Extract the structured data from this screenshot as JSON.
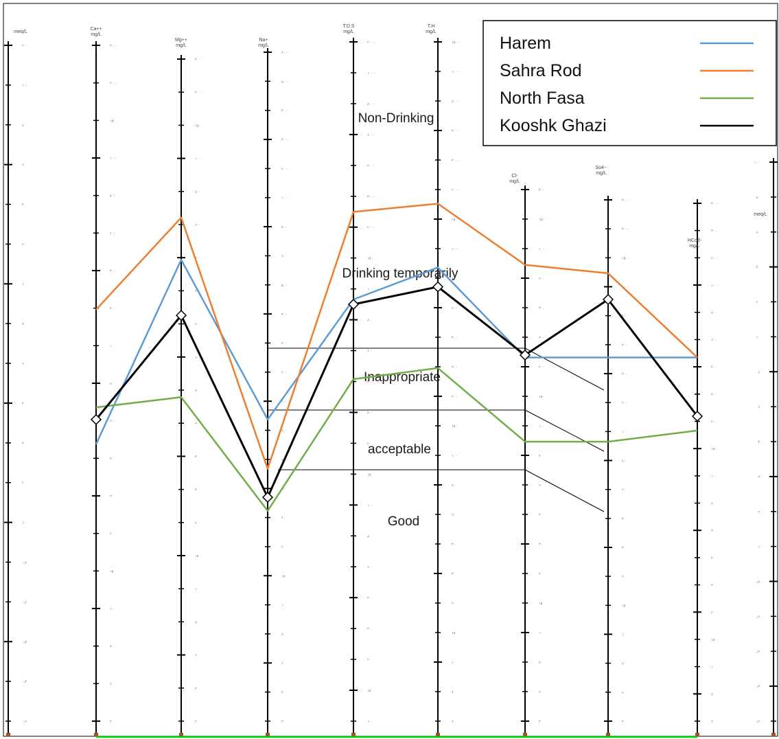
{
  "chart_data": {
    "type": "line",
    "title": "",
    "xlabel": "",
    "ylabel": "",
    "grid": false,
    "legend_position": "top-right",
    "axes": [
      {
        "id": "meq",
        "label": "meq/L"
      },
      {
        "id": "ca",
        "label": "Ca++ mg/L"
      },
      {
        "id": "mg",
        "label": "Mg++ mg/L"
      },
      {
        "id": "na",
        "label": "Na+ mg/L"
      },
      {
        "id": "tds",
        "label": "T.D.S mg/L"
      },
      {
        "id": "th",
        "label": "T.H mg/L"
      },
      {
        "id": "cl",
        "label": "Cl- mg/L"
      },
      {
        "id": "so4",
        "label": "So4-- mg/L"
      },
      {
        "id": "hco3",
        "label": "HCo3- mg/L"
      },
      {
        "id": "meq_right",
        "label": "meq/L"
      }
    ],
    "x": [
      "Ca++",
      "Mg++",
      "Na+",
      "T.D.S",
      "T.H",
      "Cl-",
      "So4--",
      "HCo3-"
    ],
    "y_scale": "log",
    "y_unit": "meq/L",
    "ylim": [
      0.01,
      1000
    ],
    "zones": [
      "Non-Drinking",
      "Drinking temporarily",
      "Inappropriate",
      "acceptable",
      "Good"
    ],
    "series": [
      {
        "name": "Harem",
        "color": "#5b9bd5",
        "values": [
          1.2,
          25,
          1.8,
          13,
          22,
          5,
          5,
          5
        ]
      },
      {
        "name": "Sahra Rod",
        "color": "#ed7d31",
        "values": [
          11,
          50,
          0.8,
          55,
          63,
          23,
          20,
          5
        ]
      },
      {
        "name": "North Fasa",
        "color": "#70ad47",
        "values": [
          2.2,
          2.6,
          0.4,
          3.5,
          4.2,
          1.25,
          1.25,
          1.5
        ]
      },
      {
        "name": "Kooshk Ghazi",
        "color": "#000000",
        "values": [
          1.8,
          10,
          0.5,
          12,
          16,
          5.2,
          13,
          1.9
        ]
      }
    ],
    "tick_labels": {
      "meq": [
        "۲۰۰",
        "۱۰۰",
        "۸۰",
        "۶۰",
        "۴۰",
        "۲۰",
        "۱۰",
        "۸",
        "۶",
        "۴",
        "۳",
        "۲",
        "۱",
        "۰٫۸",
        "۰٫۶",
        "۰٫۵",
        "۰٫۳",
        "۰٫۲"
      ],
      "meq_right": [
        "۱۰۰",
        "۸۰",
        "۶۰",
        "۴۰",
        "۲۰",
        "۱۰",
        "۸",
        "۶",
        "۴",
        "۳",
        "۲",
        "۱",
        "۰٫۸",
        "۰٫۶",
        "۰٫۴",
        "۰٫۳",
        "۰٫۲"
      ],
      "ca": [
        "۳۰۰۰",
        "۲۰۰۰",
        "۱۵۰۰",
        "۱۰۰۰",
        "۸۰۰",
        "۶۰۰",
        "۴۰۰",
        "۲۰۰",
        "۱۰۰",
        "۸۰",
        "۶۰",
        "۴۰",
        "۳۰",
        "۲۰",
        "۱۵",
        "۱۰",
        "۸",
        "۶",
        "۴"
      ],
      "mg": [
        "۴۰۰۰",
        "۲۰۰۰",
        "۱۵۰۰",
        "۱۰۰۰",
        "۸۰۰",
        "۶۰۰",
        "۴۰۰",
        "۳۰۰",
        "۲۰۰",
        "۱۰۰",
        "۸۰",
        "۶۰",
        "۴۰",
        "۳۰",
        "۲۰",
        "۱۵",
        "۱۰",
        "۸",
        "۶",
        "۴",
        "۲"
      ],
      "na": [
        "۶۰۰۰",
        "۵۰۰۰",
        "۴۰۰۰",
        "۳۰۰۰",
        "۲۰۰۰",
        "۱۰۰۰",
        "۸۰۰",
        "۶۰۰",
        "۵۰۰",
        "۴۰۰",
        "۳۰۰",
        "۲۰۰",
        "۱۰۰",
        "۸۰",
        "۶۰",
        "۵۰",
        "۴۰",
        "۲۰",
        "۱۵",
        "۱۰",
        "۸",
        "۶",
        "۴",
        "۳"
      ],
      "tds": [
        "۲۰۰۰۰",
        "۱۰۰۰۰",
        "۸۰۰۰",
        "۶۰۰۰",
        "۴۰۰۰",
        "۳۰۰۰",
        "۲۰۰۰",
        "۱۵۰۰",
        "۱۰۰۰",
        "۸۰۰",
        "۶۰۰",
        "۴۰۰",
        "۳۰۰",
        "۲۰۰",
        "۱۵۰",
        "۱۰۰",
        "۸۰",
        "۶۰",
        "۴۰",
        "۳۰",
        "۲۰",
        "۱۵",
        "۱۰"
      ],
      "th": [
        "۱۵۰۰۰",
        "۱۰۰۰۰",
        "۸۰۰۰",
        "۴۰۰۰",
        "۳۰۰۰",
        "۲۰۰۰",
        "۱۵۰۰",
        "۱۰۰۰",
        "۸۰۰",
        "۶۰۰",
        "۴۰۰",
        "۳۰۰",
        "۲۰۰",
        "۱۵۰",
        "۱۰۰",
        "۸۰",
        "۶۰",
        "۴۰",
        "۳۰",
        "۲۰",
        "۱۵",
        "۱۰",
        "۸",
        "۶"
      ],
      "cl": [
        "۴۰۰۰",
        "۱۵۰۰",
        "۱۰۰۰",
        "۶۰۰",
        "۴۰۰",
        "۳۰۰",
        "۲۰۰",
        "۱۵۰",
        "۱۰۰",
        "۸۰",
        "۶۰",
        "۴۰",
        "۳۰",
        "۲۰",
        "۱۵",
        "۱۰",
        "۸",
        "۶",
        "۴"
      ],
      "so4": [
        "۴۰۰۰",
        "۳۰۰۰",
        "۱۵۰۰",
        "۱۰۰۰",
        "۶۰۰",
        "۴۰۰",
        "۳۰۰",
        "۲۰۰",
        "۱۰۰",
        "۸۰",
        "۶۰",
        "۴۰",
        "۳۰",
        "۲۰",
        "۱۵",
        "۱۰",
        "۸",
        "۶",
        "۴"
      ],
      "hco3": [
        "۴۰۰۰",
        "۳۰۰۰",
        "۲۰۰۰",
        "۱۰۰۰",
        "۸۰۰",
        "۶۰۰",
        "۴۰۰",
        "۳۰۰",
        "۲۰۰",
        "۱۵۰",
        "۱۰۰",
        "۸۰",
        "۶۰",
        "۴۰",
        "۳۰",
        "۲۰",
        "۱۵",
        "۱۰",
        "۸",
        "۶"
      ]
    }
  }
}
